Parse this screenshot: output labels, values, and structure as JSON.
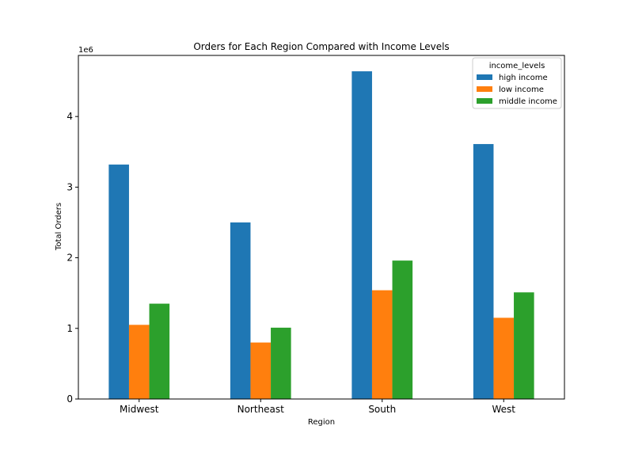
{
  "chart_data": {
    "type": "bar",
    "title": "Orders for Each Region Compared with Income Levels",
    "xlabel": "Region",
    "ylabel": "Total Orders",
    "y_offset_label": "1e6",
    "categories": [
      "Midwest",
      "Northeast",
      "South",
      "West"
    ],
    "series": [
      {
        "name": "high income",
        "color": "#1f77b4",
        "values": [
          3320000,
          2500000,
          4640000,
          3610000
        ]
      },
      {
        "name": "low income",
        "color": "#ff7f0e",
        "values": [
          1050000,
          800000,
          1540000,
          1150000
        ]
      },
      {
        "name": "middle income",
        "color": "#2ca02c",
        "values": [
          1350000,
          1010000,
          1960000,
          1510000
        ]
      }
    ],
    "ylim": [
      0,
      4865000
    ],
    "yticks": [
      0,
      1000000,
      2000000,
      3000000,
      4000000
    ],
    "ytick_labels": [
      "0",
      "1",
      "2",
      "3",
      "4"
    ],
    "legend": {
      "title": "income_levels",
      "placement": "top-right"
    },
    "grid": false
  }
}
